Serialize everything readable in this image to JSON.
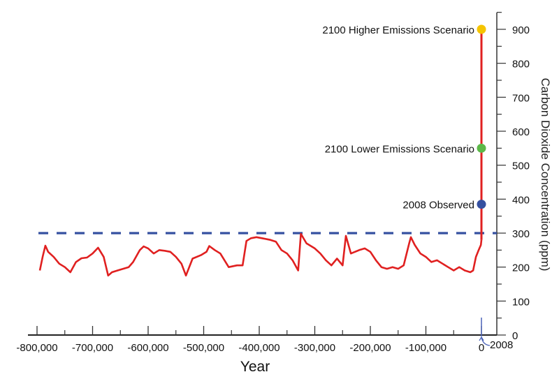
{
  "chart_data": {
    "type": "line",
    "title": "",
    "xlabel": "Year",
    "ylabel": "Carbon Dioxide Concentration (ppm)",
    "xlim": [
      -800000,
      0
    ],
    "ylim": [
      0,
      900
    ],
    "xticks": [
      -800000,
      -700000,
      -600000,
      -500000,
      -400000,
      -300000,
      -200000,
      -100000,
      0
    ],
    "xtick_labels": [
      "-800,000",
      "-700,000",
      "-600,000",
      "-500,000",
      "-400,000",
      "-300,000",
      "-200,000",
      "-100,000",
      "0"
    ],
    "yticks": [
      0,
      100,
      200,
      300,
      400,
      500,
      600,
      700,
      800,
      900
    ],
    "ytick_labels": [
      "0",
      "100",
      "200",
      "300",
      "400",
      "500",
      "600",
      "700",
      "800",
      "900"
    ],
    "grid": false,
    "series_color": "#e02020",
    "series": [
      {
        "x": [
          -795000,
          -790000,
          -785000,
          -780000,
          -770000,
          -760000,
          -750000,
          -740000,
          -730000,
          -720000,
          -710000,
          -700000,
          -690000,
          -680000,
          -672000,
          -665000,
          -655000,
          -645000,
          -635000,
          -627000,
          -615000,
          -608000,
          -600000,
          -590000,
          -580000,
          -570000,
          -560000,
          -550000,
          -540000,
          -532000,
          -520000,
          -505000,
          -495000,
          -490000,
          -480000,
          -470000,
          -455000,
          -440000,
          -430000,
          -423000,
          -415000,
          -405000,
          -395000,
          -380000,
          -370000,
          -360000,
          -350000,
          -340000,
          -330000,
          -325000,
          -315000,
          -300000,
          -290000,
          -280000,
          -270000,
          -260000,
          -250000,
          -244000,
          -235000,
          -220000,
          -210000,
          -200000,
          -190000,
          -180000,
          -170000,
          -160000,
          -150000,
          -140000,
          -130000,
          -127000,
          -120000,
          -110000,
          -100000,
          -90000,
          -80000,
          -70000,
          -60000,
          -50000,
          -40000,
          -30000,
          -20000,
          -15000,
          -10000,
          -5000,
          -1000,
          0
        ],
        "y": [
          190,
          230,
          263,
          245,
          230,
          210,
          200,
          185,
          215,
          226,
          228,
          240,
          257,
          230,
          175,
          185,
          190,
          195,
          200,
          215,
          250,
          261,
          255,
          240,
          250,
          248,
          245,
          230,
          210,
          175,
          225,
          235,
          245,
          262,
          250,
          240,
          200,
          205,
          205,
          277,
          285,
          288,
          285,
          280,
          275,
          250,
          240,
          220,
          190,
          298,
          270,
          255,
          240,
          220,
          205,
          225,
          205,
          292,
          240,
          250,
          255,
          245,
          220,
          200,
          195,
          200,
          195,
          205,
          270,
          288,
          265,
          240,
          230,
          215,
          220,
          210,
          200,
          190,
          200,
          190,
          185,
          190,
          230,
          250,
          265,
          280
        ]
      }
    ],
    "reference_line": {
      "value": 300,
      "style": "dashed",
      "color": "#3550a0"
    },
    "projection_line": {
      "from": 280,
      "to": 900,
      "x": 0,
      "color": "#e02020"
    },
    "points": [
      {
        "label": "2100 Higher Emissions Scenario",
        "value": 900,
        "color": "#f5c400"
      },
      {
        "label": "2100 Lower Emissions Scenario",
        "value": 550,
        "color": "#5cb848"
      },
      {
        "label": "2008 Observed",
        "value": 385,
        "color": "#3550a0"
      }
    ],
    "marker_annotation": {
      "label": "2008",
      "color": "#4a62b8"
    }
  }
}
